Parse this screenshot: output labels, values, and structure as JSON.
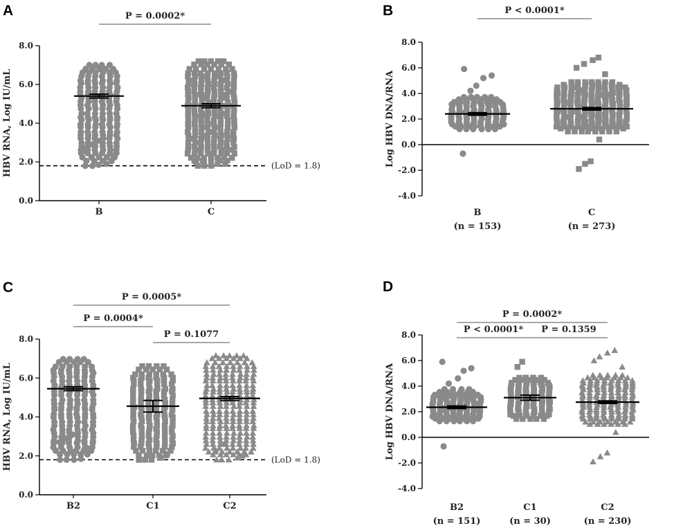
{
  "chart_data": [
    {
      "id": "A",
      "panel": "A",
      "type": "scatter",
      "ylabel": "HBV RNA, Log IU/mL",
      "ylim": [
        0,
        8
      ],
      "yticks": [
        0,
        2,
        4,
        6,
        8
      ],
      "tick_labels": [
        "0.0",
        "2.0",
        "4.0",
        "6.0",
        "8.0"
      ],
      "x_axis_at_zero": false,
      "categories": [
        {
          "name": "B",
          "n": "",
          "marker": "circle"
        },
        {
          "name": "C",
          "n": "",
          "marker": "square"
        }
      ],
      "series": [
        {
          "name": "B",
          "marker": "circle",
          "mean": 5.4,
          "sem": 0.1,
          "min": 1.8,
          "max": 7.1,
          "outliers": [
            1.8,
            1.8,
            1.85,
            1.9,
            2.3,
            2.6,
            2.9,
            3.1
          ]
        },
        {
          "name": "C",
          "marker": "square",
          "mean": 4.9,
          "sem": 0.1,
          "min": 1.8,
          "max": 7.3,
          "outliers": [
            1.8,
            1.8,
            1.8,
            1.9,
            1.9,
            2.0,
            2.1,
            2.4
          ]
        }
      ],
      "comparisons": [
        {
          "from": 0,
          "to": 1,
          "label": "P = 0.0002*",
          "level": 1
        }
      ],
      "lod": {
        "value": 1.8,
        "label": "(LoD = 1.8)"
      }
    },
    {
      "id": "B",
      "panel": "B",
      "type": "scatter",
      "ylabel": "Log HBV DNA/RNA",
      "ylim": [
        -4,
        8
      ],
      "yticks": [
        -4,
        -2,
        0,
        2,
        4,
        6,
        8
      ],
      "tick_labels": [
        "-4.0",
        "-2.0",
        "0.0",
        "2.0",
        "4.0",
        "6.0",
        "8.0"
      ],
      "x_axis_at_zero": true,
      "categories": [
        {
          "name": "B",
          "n": "(n = 153)",
          "marker": "circle"
        },
        {
          "name": "C",
          "n": "(n = 273)",
          "marker": "square"
        }
      ],
      "series": [
        {
          "name": "B",
          "marker": "circle",
          "mean": 2.4,
          "sem": 0.1,
          "min": 1.0,
          "max": 3.8,
          "outliers": [
            -0.7,
            4.2,
            4.6,
            5.2,
            5.4,
            5.9
          ]
        },
        {
          "name": "C",
          "marker": "square",
          "mean": 2.8,
          "sem": 0.1,
          "min": 0.8,
          "max": 5.0,
          "outliers": [
            -1.9,
            -1.5,
            -1.3,
            0.4,
            5.5,
            6.0,
            6.3,
            6.6,
            6.8
          ]
        }
      ],
      "comparisons": [
        {
          "from": 0,
          "to": 1,
          "label": "P < 0.0001*",
          "level": 1
        }
      ]
    },
    {
      "id": "C",
      "panel": "C",
      "type": "scatter",
      "ylabel": "HBV RNA, Log IU/mL",
      "ylim": [
        0,
        8
      ],
      "yticks": [
        0,
        2,
        4,
        6,
        8
      ],
      "tick_labels": [
        "0.0",
        "2.0",
        "4.0",
        "6.0",
        "8.0"
      ],
      "x_axis_at_zero": false,
      "categories": [
        {
          "name": "B2",
          "n": "",
          "marker": "circle"
        },
        {
          "name": "C1",
          "n": "",
          "marker": "square"
        },
        {
          "name": "C2",
          "n": "",
          "marker": "triangle"
        }
      ],
      "series": [
        {
          "name": "B2",
          "marker": "circle",
          "mean": 5.45,
          "sem": 0.1,
          "min": 1.8,
          "max": 7.1,
          "outliers": [
            1.8,
            1.8,
            1.8,
            1.85,
            2.4,
            2.7,
            2.9,
            3.1
          ]
        },
        {
          "name": "C1",
          "marker": "square",
          "mean": 4.55,
          "sem": 0.3,
          "min": 1.8,
          "max": 6.7,
          "outliers": [
            1.8,
            1.8,
            1.8,
            1.9,
            2.1,
            1.8
          ]
        },
        {
          "name": "C2",
          "marker": "triangle",
          "mean": 4.95,
          "sem": 0.1,
          "min": 1.8,
          "max": 7.3,
          "outliers": [
            1.8,
            1.8,
            1.8,
            1.9,
            2.0,
            2.3,
            2.6
          ]
        }
      ],
      "comparisons": [
        {
          "from": 0,
          "to": 2,
          "label": "P = 0.0005*",
          "level": 3
        },
        {
          "from": 0,
          "to": 1,
          "label": "P = 0.0004*",
          "level": 2
        },
        {
          "from": 1,
          "to": 2,
          "label": "P = 0.1077",
          "level": 1
        }
      ],
      "lod": {
        "value": 1.8,
        "label": "(LoD = 1.8)"
      }
    },
    {
      "id": "D",
      "panel": "D",
      "type": "scatter",
      "ylabel": "Log HBV DNA/RNA",
      "ylim": [
        -4,
        8
      ],
      "yticks": [
        -4,
        -2,
        0,
        2,
        4,
        6,
        8
      ],
      "tick_labels": [
        "-4.0",
        "-2.0",
        "0.0",
        "2.0",
        "4.0",
        "6.0",
        "8.0"
      ],
      "x_axis_at_zero": true,
      "categories": [
        {
          "name": "B2",
          "n": "(n = 151)",
          "marker": "circle"
        },
        {
          "name": "C1",
          "n": "(n = 30)",
          "marker": "square"
        },
        {
          "name": "C2",
          "n": "(n = 230)",
          "marker": "triangle"
        }
      ],
      "series": [
        {
          "name": "B2",
          "marker": "circle",
          "mean": 2.35,
          "sem": 0.1,
          "min": 1.0,
          "max": 3.8,
          "outliers": [
            -0.7,
            4.2,
            4.6,
            5.2,
            5.4,
            5.9
          ]
        },
        {
          "name": "C1",
          "marker": "square",
          "mean": 3.1,
          "sem": 0.2,
          "min": 1.2,
          "max": 4.8,
          "outliers": [
            5.5,
            5.9
          ]
        },
        {
          "name": "C2",
          "marker": "triangle",
          "mean": 2.75,
          "sem": 0.1,
          "min": 0.8,
          "max": 5.0,
          "outliers": [
            -1.9,
            -1.5,
            -1.2,
            0.4,
            5.5,
            6.0,
            6.3,
            6.6,
            6.8
          ]
        }
      ],
      "comparisons": [
        {
          "from": 0,
          "to": 2,
          "label": "P = 0.0002*",
          "level": 2
        },
        {
          "from": 0,
          "to": 1,
          "label": "P < 0.0001*",
          "level": 1
        },
        {
          "from": 1,
          "to": 2,
          "label": "P = 0.1359",
          "level": 0
        }
      ]
    }
  ]
}
